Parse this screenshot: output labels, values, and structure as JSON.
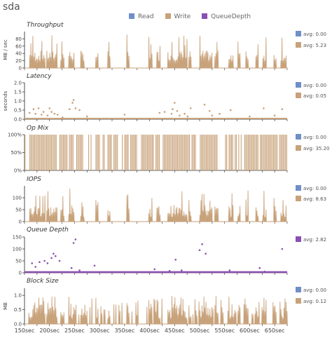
{
  "title": "sda",
  "legend": [
    {
      "label": "Read",
      "color": "#6f8fc9"
    },
    {
      "label": "Write",
      "color": "#c8a27a"
    },
    {
      "label": "QueueDepth",
      "color": "#8a4fb0"
    }
  ],
  "colors": {
    "read": "#6f8fc9",
    "write": "#c8a27a",
    "queue": "#8a4fb0"
  },
  "chart_data": {
    "type": "line",
    "xlabel": "",
    "x_range": [
      150,
      675
    ],
    "x_ticks": [
      "150sec",
      "200sec",
      "250sec",
      "300sec",
      "350sec",
      "400sec",
      "450sec",
      "500sec",
      "550sec",
      "600sec",
      "650sec"
    ],
    "panels": [
      {
        "id": "throughput",
        "title": "Throughput",
        "ylabel": "MB / sec",
        "yticks": [
          "0",
          "20",
          "40",
          "60",
          "80"
        ],
        "ylim": [
          0,
          100
        ],
        "kind": "spikes",
        "series": [
          {
            "name": "Read",
            "avg": "avg: 0.00"
          },
          {
            "name": "Write",
            "avg": "avg: 5.23"
          }
        ]
      },
      {
        "id": "latency",
        "title": "Latency",
        "ylabel": "seconds",
        "yticks": [
          "0.0",
          "0.5",
          "1.0",
          "1.5",
          "2.0"
        ],
        "ylim": [
          0,
          2
        ],
        "kind": "dots",
        "series": [
          {
            "name": "Read",
            "avg": "avg: 0.00"
          },
          {
            "name": "Write",
            "avg": "avg: 0.05"
          }
        ]
      },
      {
        "id": "opmix",
        "title": "Op Mix",
        "ylabel": "",
        "yticks": [
          "0%",
          "50%",
          "100%"
        ],
        "ylim": [
          0,
          100
        ],
        "kind": "opmix",
        "series": [
          {
            "name": "Read",
            "avg": "avg: 0.00"
          },
          {
            "name": "Write",
            "avg": "avg: 35.20"
          }
        ]
      },
      {
        "id": "iops",
        "title": "IOPS",
        "ylabel": "",
        "yticks": [
          "0",
          "50",
          "100"
        ],
        "ylim": [
          0,
          150
        ],
        "kind": "spikes",
        "series": [
          {
            "name": "Read",
            "avg": "avg: 0.00"
          },
          {
            "name": "Write",
            "avg": "avg: 8.63"
          }
        ]
      },
      {
        "id": "queue",
        "title": "Queue Depth",
        "ylabel": "",
        "yticks": [
          "0",
          "50",
          "100",
          "150"
        ],
        "ylim": [
          0,
          150
        ],
        "kind": "qdots",
        "series": [
          {
            "name": "QueueDepth",
            "avg": "avg: 2.82"
          }
        ]
      },
      {
        "id": "blocksize",
        "title": "Block Size",
        "ylabel": "MB",
        "yticks": [
          "0.0",
          "0.5",
          "1.0"
        ],
        "ylim": [
          0,
          1.25
        ],
        "kind": "spikes",
        "series": [
          {
            "name": "Read",
            "avg": "avg: 0.00"
          },
          {
            "name": "Write",
            "avg": "avg: 0.12"
          }
        ]
      }
    ]
  }
}
